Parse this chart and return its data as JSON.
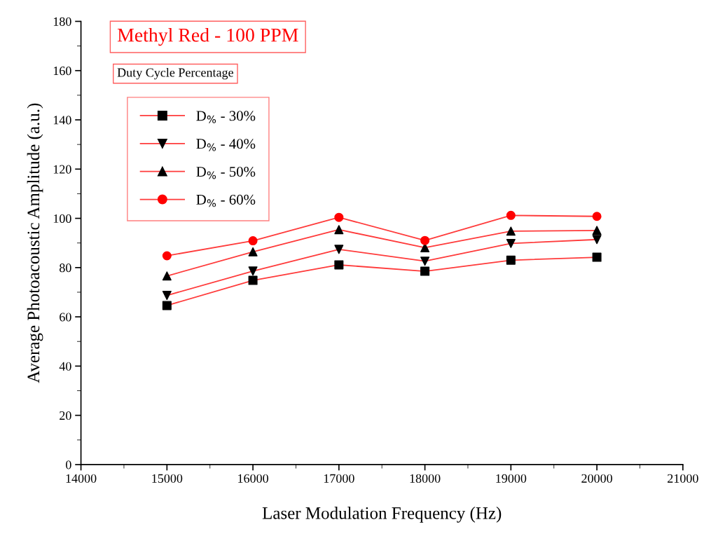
{
  "chart_data": {
    "type": "line",
    "title": "Methyl Red - 100 PPM",
    "legend_title": "Duty Cycle Percentage",
    "xlabel": "Laser Modulation Frequency (Hz)",
    "ylabel": "Average Photoacoustic Amplitude (a.u.)",
    "x": [
      15000,
      16000,
      17000,
      18000,
      19000,
      20000
    ],
    "xlim": [
      14000,
      21000
    ],
    "xticks": [
      14000,
      15000,
      16000,
      17000,
      18000,
      19000,
      20000,
      21000
    ],
    "ylim": [
      0,
      180
    ],
    "yticks": [
      0,
      20,
      40,
      60,
      80,
      100,
      120,
      140,
      160,
      180
    ],
    "grid": false,
    "legend": "top left",
    "series": [
      {
        "name": "D$_{%}$ - 30%",
        "color": "#ff3b3b",
        "colors": [
          "#000000",
          "#000000",
          "#000000",
          "#000000",
          "#000000",
          "#000000"
        ],
        "marker": "square",
        "values": [
          64.6,
          74.8,
          81.1,
          78.5,
          83.0,
          84.2
        ]
      },
      {
        "name": "D$_{%}$ - 40%",
        "color": "#ff3b3b",
        "colors": [
          "#000000",
          "#000000",
          "#000000",
          "#000000",
          "#000000",
          "#000000"
        ],
        "marker": "triangle_down",
        "values": [
          68.7,
          78.6,
          87.4,
          82.6,
          89.8,
          91.4
        ]
      },
      {
        "name": "D$_{%}$ - 50%",
        "color": "#ff3b3b",
        "colors": [
          "#000000",
          "#000000",
          "#000000",
          "#000000",
          "#000000",
          "#000000"
        ],
        "marker": "triangle",
        "values": [
          76.6,
          86.4,
          95.4,
          88.1,
          94.8,
          95.1
        ]
      },
      {
        "name": "D$_{%}$ - 60%",
        "color": "#ff3b3b",
        "colors": [
          "#ff0000",
          "#ff0000",
          "#ff0000",
          "#ff0000",
          "#ff0000",
          "#ff0000"
        ],
        "marker": "circle",
        "values": [
          84.8,
          90.9,
          100.4,
          91.0,
          101.2,
          100.8
        ]
      }
    ]
  }
}
